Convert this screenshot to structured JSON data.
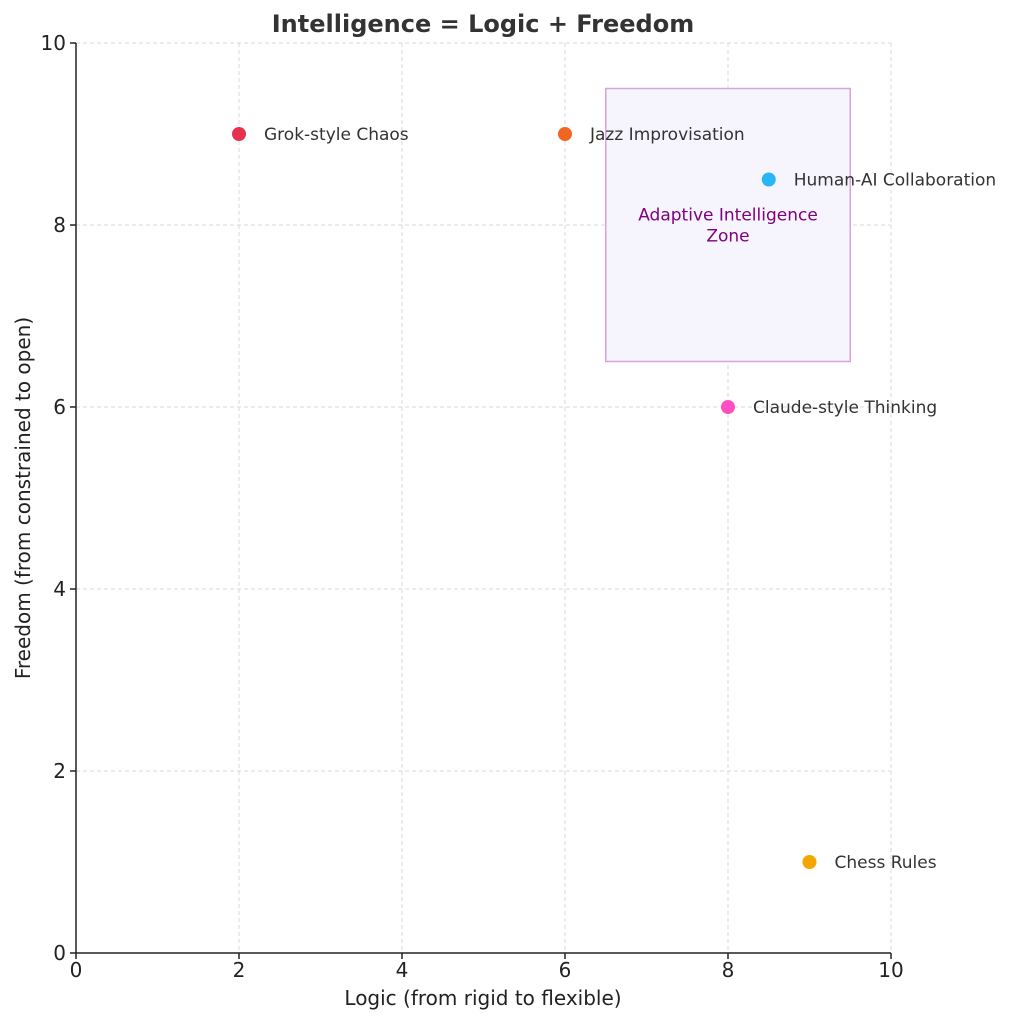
{
  "chart_data": {
    "type": "scatter",
    "title": "Intelligence = Logic + Freedom",
    "xlabel": "Logic (from rigid to flexible)",
    "ylabel": "Freedom (from constrained to open)",
    "xlim": [
      0,
      10
    ],
    "ylim": [
      0,
      10
    ],
    "xticks": [
      0,
      2,
      4,
      6,
      8,
      10
    ],
    "yticks": [
      0,
      2,
      4,
      6,
      8,
      10
    ],
    "grid": true,
    "points": [
      {
        "label": "Grok-style Chaos",
        "x": 2,
        "y": 9,
        "color": "#e8314f"
      },
      {
        "label": "Jazz Improvisation",
        "x": 6,
        "y": 9,
        "color": "#f26522"
      },
      {
        "label": "Human-AI Collaboration",
        "x": 8.5,
        "y": 8.5,
        "color": "#29b6f6"
      },
      {
        "label": "Claude-style Thinking",
        "x": 8,
        "y": 6,
        "color": "#ff4fc3"
      },
      {
        "label": "Chess Rules",
        "x": 9,
        "y": 1,
        "color": "#f5a500"
      }
    ],
    "zone": {
      "label_line1": "Adaptive Intelligence",
      "label_line2": "Zone",
      "x_range": [
        6.5,
        9.5
      ],
      "y_range": [
        6.5,
        9.5
      ],
      "fill_color": "#f6f4fc",
      "border_color": "#d9a3dd",
      "text_color": "#800080"
    }
  }
}
